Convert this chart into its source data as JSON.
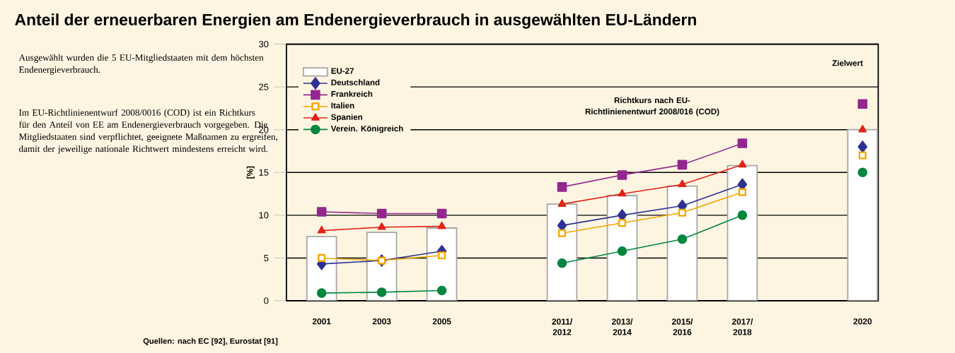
{
  "chart_data": {
    "type": "line",
    "title": "Anteil der erneuerbaren Energien am Endenergieverbrauch in ausgewählten EU-Ländern",
    "ylabel": "[%]",
    "categories": [
      "2001",
      "2003",
      "2005",
      null,
      "2011/ 2012",
      "2013/ 2014",
      "2015/ 2016",
      "2017/ 2018",
      null,
      "2020"
    ],
    "series": [
      {
        "name": "EU-27",
        "type": "bar",
        "color": "#ffffff",
        "values": [
          7.5,
          8.0,
          8.5,
          null,
          11.3,
          12.3,
          13.4,
          15.8,
          null,
          20
        ]
      },
      {
        "name": "Deutschland",
        "color": "#2e3192",
        "marker": "diamond",
        "values": [
          4.3,
          4.7,
          5.8,
          null,
          8.8,
          10.0,
          11.1,
          13.6,
          null,
          18
        ]
      },
      {
        "name": "Frankreich",
        "color": "#93278f",
        "marker": "square",
        "values": [
          10.4,
          10.2,
          10.2,
          null,
          13.3,
          14.7,
          15.9,
          18.4,
          null,
          23
        ]
      },
      {
        "name": "Italien",
        "color": "#f7a600",
        "marker": "square",
        "values": [
          5.0,
          4.7,
          5.3,
          null,
          7.9,
          9.1,
          10.3,
          12.7,
          null,
          17
        ]
      },
      {
        "name": "Spanien",
        "color": "#e2231a",
        "marker": "triangle",
        "values": [
          8.2,
          8.6,
          8.7,
          null,
          11.3,
          12.5,
          13.6,
          15.9,
          null,
          20
        ]
      },
      {
        "name": "Verein. Königreich",
        "color": "#00873e",
        "marker": "circle",
        "values": [
          0.9,
          1.0,
          1.2,
          null,
          4.4,
          5.8,
          7.2,
          10.0,
          null,
          15
        ]
      }
    ],
    "ylim": [
      0,
      30
    ],
    "yticks": [
      0,
      5,
      10,
      15,
      20,
      25,
      30
    ],
    "grid": "y",
    "legend": "top left",
    "annotations": [
      "Ausgewählt wurden die 5 EU-Mitgliedstaaten mit dem höchsten Endenergieverbrauch.",
      "Im EU-Richtlinienentwurf 2008/0016 (COD) ist ein Richtkurs für den Anteil von EE am Endenergieverbrauch vorgegeben. Die Mitgliedstaaten sind verpflichtet, geeignete Maßnamen zu ergreifen, damit der jeweilige nationale Richtwert mindestens erreicht wird.",
      "Quellen: nach EC [92], Eurostat [91]",
      "Richtkurs nach EU-Richtlinienentwurf 2008/016 (COD)",
      "Zielwert"
    ]
  }
}
